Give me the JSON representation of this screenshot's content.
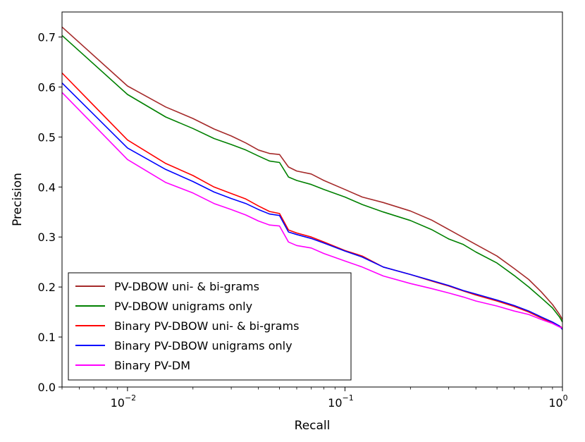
{
  "chart_data": {
    "type": "line",
    "x_scale": "log",
    "xlabel": "Recall",
    "ylabel": "Precision",
    "xlim": [
      0.005,
      1.0
    ],
    "ylim": [
      0.0,
      0.75
    ],
    "grid": false,
    "legend_position": "lower-left",
    "x_ticks": [
      {
        "value": 0.01,
        "base": "10",
        "exp": "−2"
      },
      {
        "value": 0.1,
        "base": "10",
        "exp": "−1"
      },
      {
        "value": 1.0,
        "base": "10",
        "exp": "0"
      }
    ],
    "y_ticks": [
      "0.0",
      "0.1",
      "0.2",
      "0.3",
      "0.4",
      "0.5",
      "0.6",
      "0.7"
    ],
    "series": [
      {
        "name": "PV-DBOW uni- & bi-grams",
        "color": "#a52a2a",
        "points": [
          [
            0.005,
            0.72
          ],
          [
            0.01,
            0.602
          ],
          [
            0.015,
            0.56
          ],
          [
            0.02,
            0.537
          ],
          [
            0.025,
            0.516
          ],
          [
            0.03,
            0.502
          ],
          [
            0.035,
            0.488
          ],
          [
            0.04,
            0.474
          ],
          [
            0.045,
            0.467
          ],
          [
            0.05,
            0.465
          ],
          [
            0.055,
            0.44
          ],
          [
            0.06,
            0.432
          ],
          [
            0.07,
            0.426
          ],
          [
            0.08,
            0.413
          ],
          [
            0.1,
            0.395
          ],
          [
            0.12,
            0.38
          ],
          [
            0.15,
            0.369
          ],
          [
            0.2,
            0.352
          ],
          [
            0.25,
            0.334
          ],
          [
            0.3,
            0.315
          ],
          [
            0.35,
            0.299
          ],
          [
            0.4,
            0.285
          ],
          [
            0.5,
            0.262
          ],
          [
            0.6,
            0.237
          ],
          [
            0.7,
            0.215
          ],
          [
            0.8,
            0.19
          ],
          [
            0.9,
            0.165
          ],
          [
            0.97,
            0.145
          ],
          [
            1.0,
            0.135
          ]
        ]
      },
      {
        "name": "PV-DBOW unigrams only",
        "color": "#008000",
        "points": [
          [
            0.005,
            0.703
          ],
          [
            0.01,
            0.585
          ],
          [
            0.015,
            0.54
          ],
          [
            0.02,
            0.517
          ],
          [
            0.025,
            0.497
          ],
          [
            0.03,
            0.485
          ],
          [
            0.035,
            0.474
          ],
          [
            0.04,
            0.462
          ],
          [
            0.045,
            0.452
          ],
          [
            0.05,
            0.449
          ],
          [
            0.055,
            0.42
          ],
          [
            0.06,
            0.413
          ],
          [
            0.07,
            0.405
          ],
          [
            0.08,
            0.395
          ],
          [
            0.1,
            0.38
          ],
          [
            0.12,
            0.365
          ],
          [
            0.15,
            0.35
          ],
          [
            0.2,
            0.333
          ],
          [
            0.25,
            0.315
          ],
          [
            0.3,
            0.296
          ],
          [
            0.35,
            0.285
          ],
          [
            0.4,
            0.27
          ],
          [
            0.5,
            0.248
          ],
          [
            0.6,
            0.223
          ],
          [
            0.7,
            0.2
          ],
          [
            0.8,
            0.178
          ],
          [
            0.9,
            0.158
          ],
          [
            0.97,
            0.14
          ],
          [
            1.0,
            0.13
          ]
        ]
      },
      {
        "name": "Binary PV-DBOW uni- & bi-grams",
        "color": "#ff0000",
        "points": [
          [
            0.005,
            0.628
          ],
          [
            0.01,
            0.494
          ],
          [
            0.015,
            0.447
          ],
          [
            0.02,
            0.423
          ],
          [
            0.025,
            0.4
          ],
          [
            0.03,
            0.387
          ],
          [
            0.035,
            0.376
          ],
          [
            0.04,
            0.362
          ],
          [
            0.045,
            0.351
          ],
          [
            0.05,
            0.347
          ],
          [
            0.055,
            0.314
          ],
          [
            0.06,
            0.308
          ],
          [
            0.07,
            0.3
          ],
          [
            0.08,
            0.29
          ],
          [
            0.1,
            0.273
          ],
          [
            0.12,
            0.262
          ],
          [
            0.15,
            0.24
          ],
          [
            0.2,
            0.225
          ],
          [
            0.25,
            0.212
          ],
          [
            0.3,
            0.202
          ],
          [
            0.35,
            0.192
          ],
          [
            0.4,
            0.184
          ],
          [
            0.5,
            0.172
          ],
          [
            0.6,
            0.161
          ],
          [
            0.7,
            0.15
          ],
          [
            0.8,
            0.138
          ],
          [
            0.9,
            0.128
          ],
          [
            0.97,
            0.122
          ],
          [
            1.0,
            0.118
          ]
        ]
      },
      {
        "name": "Binary PV-DBOW unigrams only",
        "color": "#0000ff",
        "points": [
          [
            0.005,
            0.608
          ],
          [
            0.01,
            0.478
          ],
          [
            0.015,
            0.435
          ],
          [
            0.02,
            0.411
          ],
          [
            0.025,
            0.39
          ],
          [
            0.03,
            0.377
          ],
          [
            0.035,
            0.367
          ],
          [
            0.04,
            0.355
          ],
          [
            0.045,
            0.346
          ],
          [
            0.05,
            0.343
          ],
          [
            0.055,
            0.31
          ],
          [
            0.06,
            0.305
          ],
          [
            0.07,
            0.297
          ],
          [
            0.08,
            0.288
          ],
          [
            0.1,
            0.272
          ],
          [
            0.12,
            0.26
          ],
          [
            0.15,
            0.24
          ],
          [
            0.2,
            0.225
          ],
          [
            0.25,
            0.213
          ],
          [
            0.3,
            0.203
          ],
          [
            0.35,
            0.193
          ],
          [
            0.4,
            0.186
          ],
          [
            0.5,
            0.174
          ],
          [
            0.6,
            0.163
          ],
          [
            0.7,
            0.152
          ],
          [
            0.8,
            0.14
          ],
          [
            0.9,
            0.13
          ],
          [
            0.97,
            0.122
          ],
          [
            1.0,
            0.115
          ]
        ]
      },
      {
        "name": "Binary PV-DM",
        "color": "#ff00ff",
        "points": [
          [
            0.005,
            0.589
          ],
          [
            0.01,
            0.455
          ],
          [
            0.015,
            0.409
          ],
          [
            0.02,
            0.388
          ],
          [
            0.025,
            0.367
          ],
          [
            0.03,
            0.355
          ],
          [
            0.035,
            0.344
          ],
          [
            0.04,
            0.332
          ],
          [
            0.045,
            0.324
          ],
          [
            0.05,
            0.322
          ],
          [
            0.055,
            0.29
          ],
          [
            0.06,
            0.283
          ],
          [
            0.07,
            0.278
          ],
          [
            0.08,
            0.267
          ],
          [
            0.1,
            0.252
          ],
          [
            0.12,
            0.24
          ],
          [
            0.15,
            0.222
          ],
          [
            0.2,
            0.207
          ],
          [
            0.25,
            0.197
          ],
          [
            0.3,
            0.188
          ],
          [
            0.35,
            0.18
          ],
          [
            0.4,
            0.172
          ],
          [
            0.5,
            0.162
          ],
          [
            0.6,
            0.152
          ],
          [
            0.7,
            0.145
          ],
          [
            0.8,
            0.135
          ],
          [
            0.9,
            0.127
          ],
          [
            0.97,
            0.12
          ],
          [
            1.0,
            0.118
          ]
        ]
      }
    ]
  }
}
